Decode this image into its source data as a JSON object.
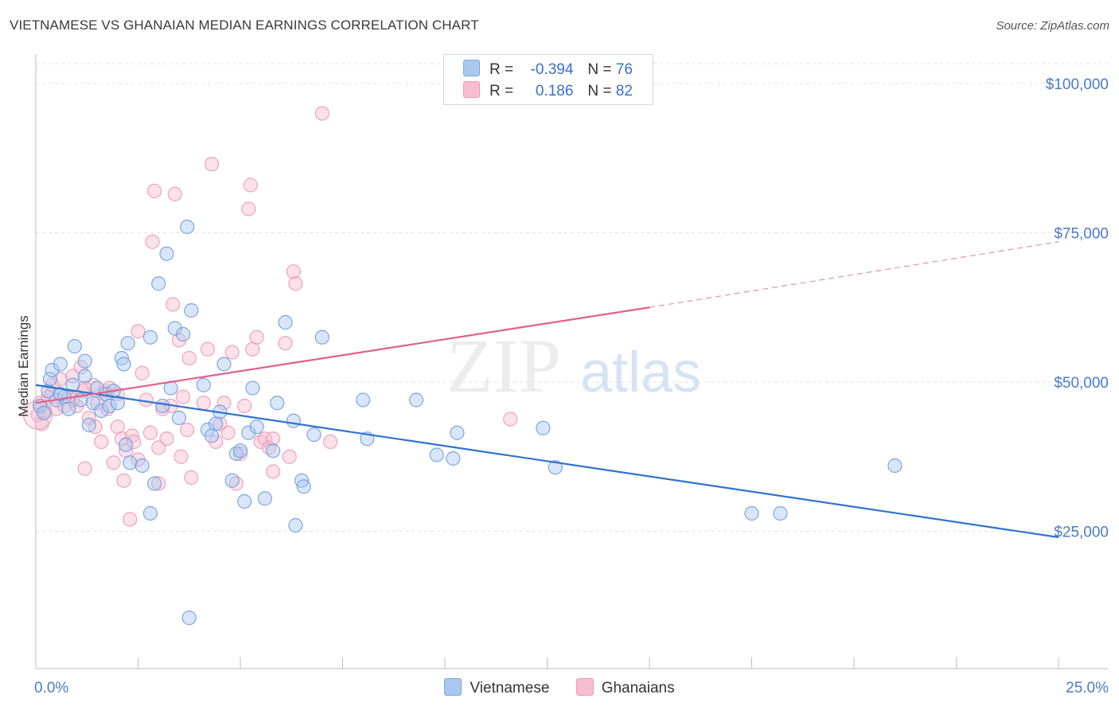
{
  "title": "VIETNAMESE VS GHANAIAN MEDIAN EARNINGS CORRELATION CHART",
  "source": "Source: ZipAtlas.com",
  "watermark": {
    "zip": "ZIP",
    "atlas": "atlas"
  },
  "legend": {
    "r_label": "R =",
    "n_label": "N =",
    "rows": [
      {
        "r": "-0.394",
        "n": "76",
        "color": "#a9c8f0",
        "border": "#7aa6e0"
      },
      {
        "r": "0.186",
        "n": "82",
        "color": "#f7bdd0",
        "border": "#ee98b5"
      }
    ]
  },
  "colors": {
    "blue_fill": "#a9c8f0",
    "blue_stroke": "#6f9fdc",
    "blue_line": "#2f73d0",
    "pink_fill": "#f7bdd0",
    "pink_stroke": "#ee98b5",
    "pink_line": "#e0608c",
    "tick": "#4a7bc8"
  },
  "chart_data": {
    "type": "scatter",
    "ylabel": "Median Earnings",
    "xlim": [
      0,
      25
    ],
    "ylim": [
      2000,
      106000
    ],
    "x_tick_labels": [
      "0.0%",
      "25.0%"
    ],
    "y_ticks": [
      {
        "value": 25000,
        "label": "$25,000"
      },
      {
        "value": 50000,
        "label": "$50,000"
      },
      {
        "value": 75000,
        "label": "$75,000"
      },
      {
        "value": 100000,
        "label": "$100,000"
      }
    ],
    "series": [
      {
        "name": "Vietnamese",
        "trend": {
          "x0": 0,
          "y0": 49500,
          "x1": 25,
          "y1": 24000
        },
        "points": [
          [
            0.1,
            46000
          ],
          [
            0.2,
            44800
          ],
          [
            0.3,
            48500
          ],
          [
            0.35,
            50500
          ],
          [
            0.4,
            52000
          ],
          [
            0.5,
            47000
          ],
          [
            0.6,
            53000
          ],
          [
            0.7,
            47500
          ],
          [
            0.8,
            45500
          ],
          [
            0.9,
            49500
          ],
          [
            0.95,
            56000
          ],
          [
            1.1,
            47000
          ],
          [
            1.2,
            51000
          ],
          [
            1.2,
            53500
          ],
          [
            1.3,
            42800
          ],
          [
            1.4,
            46500
          ],
          [
            1.5,
            49000
          ],
          [
            1.6,
            45200
          ],
          [
            1.7,
            48000
          ],
          [
            1.8,
            46000
          ],
          [
            1.9,
            48500
          ],
          [
            2.0,
            46500
          ],
          [
            2.1,
            54000
          ],
          [
            2.15,
            53000
          ],
          [
            2.2,
            39500
          ],
          [
            2.25,
            56500
          ],
          [
            2.3,
            36500
          ],
          [
            2.6,
            36000
          ],
          [
            2.8,
            57500
          ],
          [
            2.8,
            28000
          ],
          [
            2.9,
            33000
          ],
          [
            3.0,
            66500
          ],
          [
            3.1,
            46000
          ],
          [
            3.2,
            71500
          ],
          [
            3.3,
            49000
          ],
          [
            3.4,
            59000
          ],
          [
            3.5,
            44000
          ],
          [
            3.6,
            58000
          ],
          [
            3.7,
            76000
          ],
          [
            3.75,
            10500
          ],
          [
            3.8,
            62000
          ],
          [
            4.1,
            49500
          ],
          [
            4.2,
            42000
          ],
          [
            4.3,
            41000
          ],
          [
            4.4,
            43000
          ],
          [
            4.5,
            45000
          ],
          [
            4.6,
            53000
          ],
          [
            4.8,
            33500
          ],
          [
            4.9,
            38000
          ],
          [
            5.0,
            38500
          ],
          [
            5.1,
            30000
          ],
          [
            5.2,
            41500
          ],
          [
            5.3,
            49000
          ],
          [
            5.4,
            42500
          ],
          [
            5.6,
            30500
          ],
          [
            5.8,
            38500
          ],
          [
            5.9,
            46500
          ],
          [
            6.1,
            60000
          ],
          [
            6.3,
            43500
          ],
          [
            6.35,
            26000
          ],
          [
            6.5,
            33500
          ],
          [
            6.55,
            32500
          ],
          [
            6.8,
            41200
          ],
          [
            7.0,
            57500
          ],
          [
            8.0,
            47000
          ],
          [
            8.1,
            40500
          ],
          [
            9.3,
            47000
          ],
          [
            9.8,
            37800
          ],
          [
            10.2,
            37200
          ],
          [
            10.3,
            41500
          ],
          [
            12.4,
            42300
          ],
          [
            12.7,
            35700
          ],
          [
            17.5,
            28000
          ],
          [
            18.2,
            28000
          ],
          [
            21.0,
            36000
          ],
          [
            0.6,
            48000
          ]
        ]
      },
      {
        "name": "Ghanaians",
        "trend": {
          "x0": 0,
          "y0": 46500,
          "x1": 15,
          "y1": 62500,
          "dash_x1": 25,
          "dash_y1": 73500
        },
        "points": [
          [
            0.05,
            44500
          ],
          [
            0.1,
            46500
          ],
          [
            0.2,
            45000
          ],
          [
            0.3,
            47500
          ],
          [
            0.4,
            48000
          ],
          [
            0.5,
            45500
          ],
          [
            0.6,
            50500
          ],
          [
            0.7,
            46000
          ],
          [
            0.8,
            47500
          ],
          [
            0.9,
            51000
          ],
          [
            1.0,
            46000
          ],
          [
            1.1,
            52500
          ],
          [
            1.15,
            48500
          ],
          [
            1.2,
            35500
          ],
          [
            1.3,
            44000
          ],
          [
            1.4,
            49500
          ],
          [
            1.45,
            42500
          ],
          [
            1.5,
            46500
          ],
          [
            1.6,
            40000
          ],
          [
            1.7,
            48500
          ],
          [
            1.75,
            45500
          ],
          [
            1.8,
            49000
          ],
          [
            1.9,
            36500
          ],
          [
            2.0,
            42500
          ],
          [
            2.1,
            40500
          ],
          [
            2.15,
            33500
          ],
          [
            2.2,
            38500
          ],
          [
            2.3,
            27000
          ],
          [
            2.35,
            41000
          ],
          [
            2.4,
            40000
          ],
          [
            2.5,
            58500
          ],
          [
            2.6,
            51500
          ],
          [
            2.7,
            47000
          ],
          [
            2.8,
            41500
          ],
          [
            2.85,
            73500
          ],
          [
            2.9,
            82000
          ],
          [
            3.0,
            33000
          ],
          [
            3.1,
            45500
          ],
          [
            3.2,
            40500
          ],
          [
            3.3,
            46000
          ],
          [
            3.35,
            63000
          ],
          [
            3.4,
            81500
          ],
          [
            3.5,
            57000
          ],
          [
            3.55,
            37500
          ],
          [
            3.6,
            47500
          ],
          [
            3.7,
            42000
          ],
          [
            3.75,
            54000
          ],
          [
            3.8,
            34000
          ],
          [
            4.1,
            46500
          ],
          [
            4.2,
            55500
          ],
          [
            4.3,
            86500
          ],
          [
            4.4,
            40000
          ],
          [
            4.6,
            46500
          ],
          [
            4.7,
            41500
          ],
          [
            4.8,
            55000
          ],
          [
            4.9,
            33000
          ],
          [
            5.0,
            38000
          ],
          [
            5.1,
            46000
          ],
          [
            5.2,
            79000
          ],
          [
            5.25,
            83000
          ],
          [
            5.3,
            55500
          ],
          [
            5.4,
            57500
          ],
          [
            5.5,
            40000
          ],
          [
            5.6,
            40500
          ],
          [
            5.7,
            39000
          ],
          [
            5.8,
            35000
          ],
          [
            6.1,
            56500
          ],
          [
            6.2,
            37500
          ],
          [
            6.3,
            68500
          ],
          [
            6.35,
            66500
          ],
          [
            7.0,
            95000
          ],
          [
            7.2,
            40000
          ],
          [
            11.6,
            43800
          ],
          [
            0.4,
            49500
          ],
          [
            0.9,
            47000
          ],
          [
            1.2,
            49000
          ],
          [
            2.0,
            48000
          ],
          [
            2.5,
            37000
          ],
          [
            3.0,
            39000
          ],
          [
            4.5,
            43000
          ],
          [
            5.8,
            40500
          ],
          [
            0.15,
            43000
          ]
        ]
      }
    ]
  }
}
